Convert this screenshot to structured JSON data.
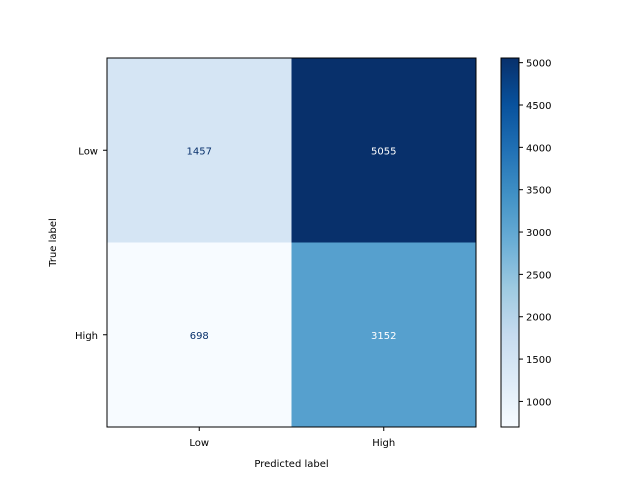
{
  "chart_data": {
    "type": "heatmap",
    "title": "",
    "xlabel": "Predicted label",
    "ylabel": "True label",
    "x_categories": [
      "Low",
      "High"
    ],
    "y_categories": [
      "Low",
      "High"
    ],
    "values": [
      [
        1457,
        5055
      ],
      [
        698,
        3152
      ]
    ],
    "colormap": "Blues",
    "colorbar": {
      "min": 698,
      "max": 5055,
      "ticks": [
        1000,
        1500,
        2000,
        2500,
        3000,
        3500,
        4000,
        4500,
        5000
      ]
    },
    "text_colors": {
      "dark": "#08306b",
      "light": "#ffffff"
    },
    "grid": false
  }
}
